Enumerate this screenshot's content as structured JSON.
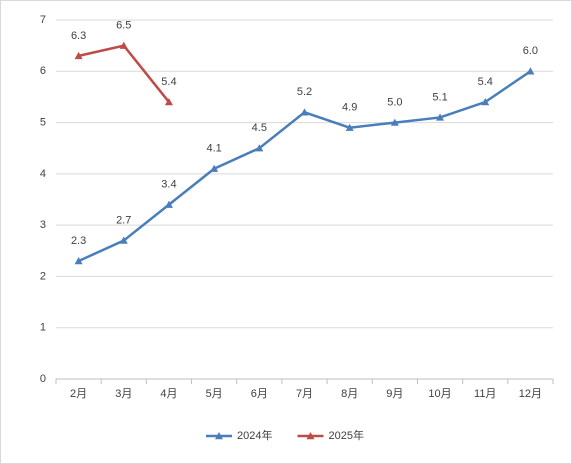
{
  "chart_data": {
    "type": "line",
    "categories": [
      "2月",
      "3月",
      "4月",
      "5月",
      "6月",
      "7月",
      "8月",
      "9月",
      "10月",
      "11月",
      "12月"
    ],
    "series": [
      {
        "name": "2024年",
        "color": "#4a7ebb",
        "values": [
          2.3,
          2.7,
          3.4,
          4.1,
          4.5,
          5.2,
          4.9,
          5.0,
          5.1,
          5.4,
          6.0
        ],
        "value_labels": [
          "2.3",
          "2.7",
          "3.4",
          "4.1",
          "4.5",
          "5.2",
          "4.9",
          "5.0",
          "5.1",
          "5.4",
          "6.0"
        ]
      },
      {
        "name": "2025年",
        "color": "#be4b48",
        "values": [
          6.3,
          6.5,
          5.4,
          null,
          null,
          null,
          null,
          null,
          null,
          null,
          null
        ],
        "value_labels": [
          "6.3",
          "6.5",
          "5.4",
          null,
          null,
          null,
          null,
          null,
          null,
          null,
          null
        ]
      }
    ],
    "ylim": [
      0,
      7
    ],
    "yticks": [
      0,
      1,
      2,
      3,
      4,
      5,
      6,
      7
    ],
    "grid": true,
    "legend": "bottom"
  }
}
